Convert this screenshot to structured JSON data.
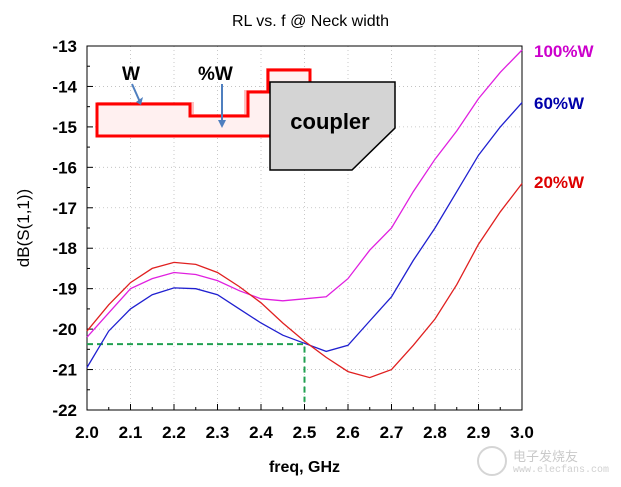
{
  "chart_data": {
    "type": "line",
    "title": "RL vs. f @ Neck width",
    "xlabel": "freq, GHz",
    "ylabel": "dB(S(1,1))",
    "xlim": [
      2.0,
      3.0
    ],
    "ylim": [
      -22,
      -13
    ],
    "x_ticks": [
      "2.0",
      "2.1",
      "2.2",
      "2.3",
      "2.4",
      "2.5",
      "2.6",
      "2.7",
      "2.8",
      "2.9",
      "3.0"
    ],
    "y_ticks": [
      "-13",
      "-14",
      "-15",
      "-16",
      "-17",
      "-18",
      "-19",
      "-20",
      "-21",
      "-22"
    ],
    "grid": true,
    "series": [
      {
        "name": "100%W",
        "color": "#e020e0",
        "label_color": "#cc00cc",
        "x": [
          2.0,
          2.05,
          2.1,
          2.15,
          2.2,
          2.25,
          2.3,
          2.35,
          2.4,
          2.45,
          2.5,
          2.55,
          2.6,
          2.65,
          2.7,
          2.75,
          2.8,
          2.85,
          2.9,
          2.95,
          3.0
        ],
        "y": [
          -20.2,
          -19.6,
          -19.0,
          -18.75,
          -18.6,
          -18.65,
          -18.8,
          -19.05,
          -19.25,
          -19.3,
          -19.25,
          -19.2,
          -18.75,
          -18.05,
          -17.5,
          -16.6,
          -15.8,
          -15.1,
          -14.3,
          -13.65,
          -13.1
        ]
      },
      {
        "name": "60%W",
        "color": "#2020d0",
        "label_color": "#0000aa",
        "x": [
          2.0,
          2.05,
          2.1,
          2.15,
          2.2,
          2.25,
          2.3,
          2.35,
          2.4,
          2.45,
          2.5,
          2.55,
          2.6,
          2.65,
          2.7,
          2.75,
          2.8,
          2.85,
          2.9,
          2.95,
          3.0
        ],
        "y": [
          -20.95,
          -20.05,
          -19.5,
          -19.15,
          -18.98,
          -19.0,
          -19.15,
          -19.5,
          -19.85,
          -20.15,
          -20.35,
          -20.55,
          -20.4,
          -19.8,
          -19.2,
          -18.3,
          -17.5,
          -16.6,
          -15.7,
          -15.0,
          -14.4
        ]
      },
      {
        "name": "20%W",
        "color": "#e02020",
        "label_color": "#dd0000",
        "x": [
          2.0,
          2.05,
          2.1,
          2.15,
          2.2,
          2.25,
          2.3,
          2.35,
          2.4,
          2.45,
          2.5,
          2.55,
          2.6,
          2.65,
          2.7,
          2.75,
          2.8,
          2.85,
          2.9,
          2.95,
          3.0
        ],
        "y": [
          -20.05,
          -19.4,
          -18.85,
          -18.5,
          -18.35,
          -18.4,
          -18.6,
          -18.95,
          -19.35,
          -19.85,
          -20.3,
          -20.7,
          -21.05,
          -21.2,
          -21.0,
          -20.4,
          -19.75,
          -18.9,
          -17.9,
          -17.1,
          -16.4
        ]
      }
    ],
    "marker": {
      "color": "#20a050",
      "y_level": -20.37,
      "x_from": 2.0,
      "x_to": 2.5,
      "y_bottom": -21.8
    },
    "inset": {
      "w_label": "W",
      "pct_label": "%W",
      "coupler_label": "coupler",
      "trace_color": "#ff0000"
    }
  },
  "watermark": {
    "site_name": "电子发烧友",
    "url": "www.elecfans.com"
  }
}
